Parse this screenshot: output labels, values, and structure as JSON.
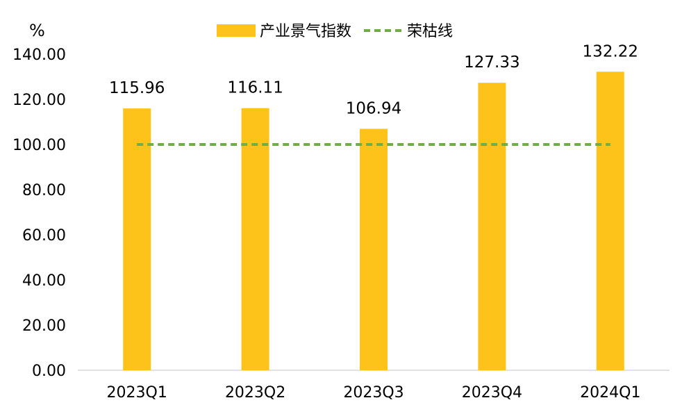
{
  "chart_data": {
    "type": "bar",
    "unit_label": "%",
    "categories": [
      "2023Q1",
      "2023Q2",
      "2023Q3",
      "2023Q4",
      "2024Q1"
    ],
    "series": [
      {
        "name": "产业景气指数",
        "type": "bar",
        "color": "#FDC31A",
        "values": [
          115.96,
          116.11,
          106.94,
          127.33,
          132.22
        ],
        "value_labels": [
          "115.96",
          "116.11",
          "106.94",
          "127.33",
          "132.22"
        ]
      },
      {
        "name": "荣枯线",
        "type": "line",
        "style": "dashed",
        "color": "#70AD47",
        "values": [
          100,
          100,
          100,
          100,
          100
        ]
      }
    ],
    "ylim": [
      0,
      140
    ],
    "y_ticks": [
      "0.00",
      "20.00",
      "40.00",
      "60.00",
      "80.00",
      "100.00",
      "120.00",
      "140.00"
    ],
    "grid": false,
    "legend_position": "top-center"
  }
}
